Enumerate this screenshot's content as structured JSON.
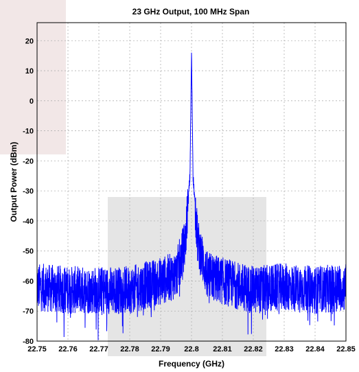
{
  "chart_data": {
    "type": "line",
    "title": "23 GHz Output, 100 MHz Span",
    "xlabel": "Frequency (GHz)",
    "ylabel": "Output Power (dBm)",
    "xlim": [
      22.75,
      22.85
    ],
    "ylim": [
      -80,
      26
    ],
    "xticks": [
      "22.75",
      "22.76",
      "22.77",
      "22.78",
      "22.79",
      "22.8",
      "22.81",
      "22.82",
      "22.83",
      "22.84",
      "22.85"
    ],
    "yticks": [
      "20",
      "10",
      "0",
      "-10",
      "-20",
      "-30",
      "-40",
      "-50",
      "-60",
      "-70",
      "-80"
    ],
    "grid": true,
    "series": [
      {
        "color": "#0000ff",
        "noise_floor_dbm": [
          -55,
          -72
        ],
        "x": [
          22.75,
          22.76,
          22.77,
          22.78,
          22.79,
          22.795,
          22.798,
          22.7995,
          22.8,
          22.8005,
          22.802,
          22.805,
          22.81,
          22.82,
          22.83,
          22.84,
          22.85
        ],
        "values": [
          -62,
          -63,
          -63,
          -63,
          -60,
          -58,
          -47,
          -25,
          16,
          -25,
          -47,
          -58,
          -60,
          -63,
          -62,
          -63,
          -62
        ]
      }
    ]
  }
}
